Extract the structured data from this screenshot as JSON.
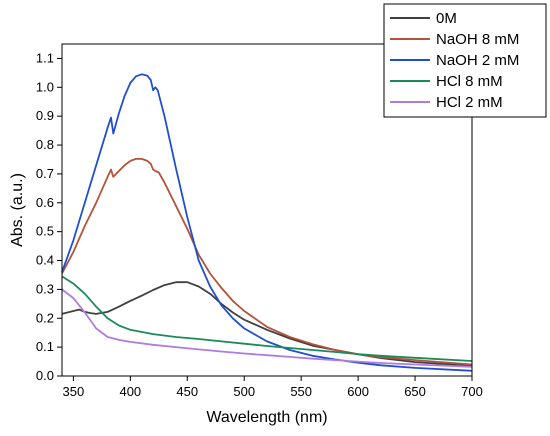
{
  "chart_data": {
    "type": "line",
    "title": "",
    "xlabel": "Wavelength (nm)",
    "ylabel": "Abs. (a.u.)",
    "xlim": [
      340,
      700
    ],
    "ylim": [
      0,
      1.15
    ],
    "xticks": [
      350,
      400,
      450,
      500,
      550,
      600,
      650,
      700
    ],
    "yticks": [
      0.0,
      0.1,
      0.2,
      0.3,
      0.4,
      0.5,
      0.6,
      0.7,
      0.8,
      0.9,
      1.0,
      1.1
    ],
    "grid": false,
    "legend_position": "top-right",
    "series": [
      {
        "name": "0M",
        "color": "#404040",
        "points": [
          [
            340,
            0.215
          ],
          [
            350,
            0.225
          ],
          [
            355,
            0.23
          ],
          [
            360,
            0.222
          ],
          [
            365,
            0.218
          ],
          [
            370,
            0.215
          ],
          [
            380,
            0.222
          ],
          [
            390,
            0.24
          ],
          [
            400,
            0.26
          ],
          [
            410,
            0.278
          ],
          [
            420,
            0.298
          ],
          [
            430,
            0.315
          ],
          [
            440,
            0.325
          ],
          [
            450,
            0.325
          ],
          [
            460,
            0.31
          ],
          [
            470,
            0.285
          ],
          [
            480,
            0.25
          ],
          [
            490,
            0.22
          ],
          [
            500,
            0.195
          ],
          [
            520,
            0.16
          ],
          [
            540,
            0.13
          ],
          [
            560,
            0.105
          ],
          [
            580,
            0.09
          ],
          [
            600,
            0.075
          ],
          [
            620,
            0.062
          ],
          [
            650,
            0.048
          ],
          [
            700,
            0.035
          ]
        ]
      },
      {
        "name": "NaOH 8 mM",
        "color": "#b5523b",
        "points": [
          [
            340,
            0.355
          ],
          [
            350,
            0.43
          ],
          [
            360,
            0.52
          ],
          [
            370,
            0.6
          ],
          [
            380,
            0.69
          ],
          [
            383,
            0.715
          ],
          [
            385,
            0.69
          ],
          [
            390,
            0.71
          ],
          [
            395,
            0.73
          ],
          [
            400,
            0.745
          ],
          [
            405,
            0.752
          ],
          [
            410,
            0.752
          ],
          [
            415,
            0.745
          ],
          [
            418,
            0.735
          ],
          [
            420,
            0.715
          ],
          [
            422,
            0.71
          ],
          [
            425,
            0.705
          ],
          [
            430,
            0.67
          ],
          [
            440,
            0.59
          ],
          [
            450,
            0.51
          ],
          [
            460,
            0.42
          ],
          [
            470,
            0.355
          ],
          [
            480,
            0.305
          ],
          [
            490,
            0.26
          ],
          [
            500,
            0.225
          ],
          [
            520,
            0.17
          ],
          [
            540,
            0.135
          ],
          [
            560,
            0.11
          ],
          [
            580,
            0.09
          ],
          [
            600,
            0.075
          ],
          [
            620,
            0.065
          ],
          [
            650,
            0.055
          ],
          [
            700,
            0.04
          ]
        ]
      },
      {
        "name": "NaOH 2 mM",
        "color": "#1f4fd0",
        "points": [
          [
            340,
            0.36
          ],
          [
            350,
            0.47
          ],
          [
            360,
            0.6
          ],
          [
            370,
            0.73
          ],
          [
            380,
            0.86
          ],
          [
            383,
            0.895
          ],
          [
            385,
            0.84
          ],
          [
            390,
            0.91
          ],
          [
            395,
            0.97
          ],
          [
            400,
            1.015
          ],
          [
            405,
            1.038
          ],
          [
            410,
            1.045
          ],
          [
            415,
            1.04
          ],
          [
            418,
            1.025
          ],
          [
            420,
            0.99
          ],
          [
            422,
            1.0
          ],
          [
            424,
            0.99
          ],
          [
            430,
            0.9
          ],
          [
            440,
            0.72
          ],
          [
            450,
            0.55
          ],
          [
            460,
            0.4
          ],
          [
            470,
            0.31
          ],
          [
            480,
            0.245
          ],
          [
            490,
            0.2
          ],
          [
            500,
            0.165
          ],
          [
            520,
            0.12
          ],
          [
            540,
            0.09
          ],
          [
            560,
            0.07
          ],
          [
            580,
            0.057
          ],
          [
            600,
            0.046
          ],
          [
            620,
            0.037
          ],
          [
            650,
            0.028
          ],
          [
            700,
            0.018
          ]
        ]
      },
      {
        "name": "HCl 8 mM",
        "color": "#1b8a5a",
        "points": [
          [
            340,
            0.345
          ],
          [
            350,
            0.32
          ],
          [
            360,
            0.285
          ],
          [
            370,
            0.24
          ],
          [
            380,
            0.2
          ],
          [
            390,
            0.175
          ],
          [
            400,
            0.16
          ],
          [
            420,
            0.145
          ],
          [
            440,
            0.135
          ],
          [
            460,
            0.128
          ],
          [
            480,
            0.12
          ],
          [
            500,
            0.112
          ],
          [
            520,
            0.104
          ],
          [
            540,
            0.097
          ],
          [
            560,
            0.09
          ],
          [
            580,
            0.083
          ],
          [
            600,
            0.076
          ],
          [
            620,
            0.07
          ],
          [
            650,
            0.063
          ],
          [
            700,
            0.052
          ]
        ]
      },
      {
        "name": "HCl 2 mM",
        "color": "#b07be0",
        "points": [
          [
            340,
            0.3
          ],
          [
            350,
            0.27
          ],
          [
            360,
            0.22
          ],
          [
            370,
            0.165
          ],
          [
            380,
            0.135
          ],
          [
            390,
            0.125
          ],
          [
            400,
            0.118
          ],
          [
            420,
            0.108
          ],
          [
            440,
            0.1
          ],
          [
            460,
            0.092
          ],
          [
            480,
            0.085
          ],
          [
            500,
            0.078
          ],
          [
            520,
            0.072
          ],
          [
            540,
            0.066
          ],
          [
            560,
            0.06
          ],
          [
            580,
            0.055
          ],
          [
            600,
            0.05
          ],
          [
            620,
            0.045
          ],
          [
            650,
            0.04
          ],
          [
            700,
            0.032
          ]
        ]
      }
    ]
  }
}
